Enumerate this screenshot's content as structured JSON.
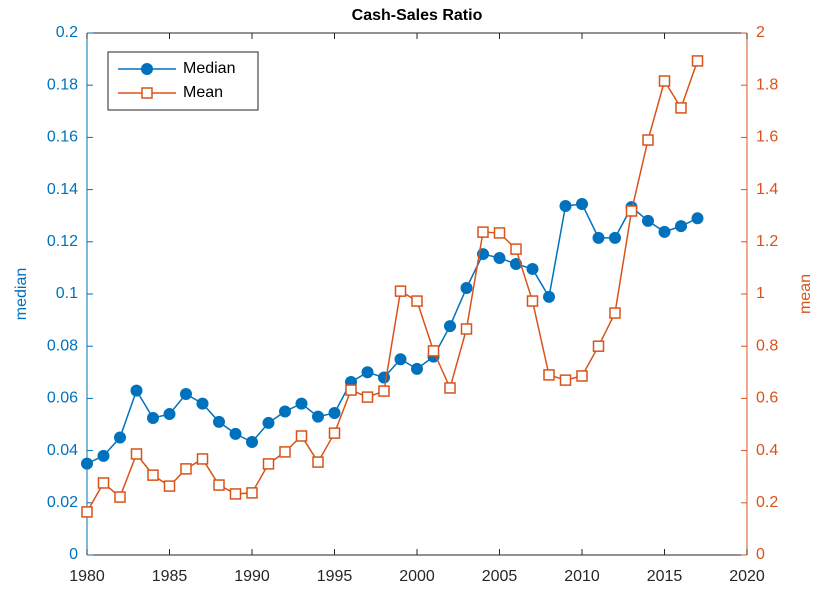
{
  "chart_data": {
    "type": "line",
    "title": "Cash-Sales Ratio",
    "y_label": "median",
    "y2_label": "mean",
    "x": [
      1980,
      1981,
      1982,
      1983,
      1984,
      1985,
      1986,
      1987,
      1988,
      1989,
      1990,
      1991,
      1992,
      1993,
      1994,
      1995,
      1996,
      1997,
      1998,
      1999,
      2000,
      2001,
      2002,
      2003,
      2004,
      2005,
      2006,
      2007,
      2008,
      2009,
      2010,
      2011,
      2012,
      2013,
      2014,
      2015,
      2016,
      2017
    ],
    "series": [
      {
        "name": "Median",
        "color": "#0072BD",
        "marker": "circle",
        "axis": "y",
        "values": [
          0.035,
          0.038,
          0.045,
          0.063,
          0.0525,
          0.054,
          0.0617,
          0.058,
          0.051,
          0.0464,
          0.0433,
          0.0506,
          0.055,
          0.058,
          0.053,
          0.0544,
          0.0663,
          0.07,
          0.068,
          0.075,
          0.0713,
          0.076,
          0.0877,
          0.1023,
          0.1153,
          0.1138,
          0.1115,
          0.1096,
          0.0989,
          0.1337,
          0.1345,
          0.1215,
          0.1215,
          0.1333,
          0.128,
          0.1238,
          0.126,
          0.129
        ]
      },
      {
        "name": "Mean",
        "color": "#D95319",
        "marker": "square",
        "axis": "y2",
        "values": [
          0.165,
          0.276,
          0.222,
          0.387,
          0.306,
          0.264,
          0.33,
          0.368,
          0.268,
          0.234,
          0.238,
          0.349,
          0.395,
          0.456,
          0.356,
          0.467,
          0.632,
          0.605,
          0.628,
          1.011,
          0.973,
          0.782,
          0.64,
          0.866,
          1.237,
          1.234,
          1.172,
          0.973,
          0.69,
          0.67,
          0.686,
          0.8,
          0.927,
          1.318,
          1.59,
          1.816,
          1.713,
          1.893
        ]
      }
    ],
    "xlim": [
      1980,
      2020
    ],
    "xticks": [
      1980,
      1985,
      1990,
      1995,
      2000,
      2005,
      2010,
      2015,
      2020
    ],
    "ylim": [
      0,
      0.2
    ],
    "yticks": [
      0,
      0.02,
      0.04,
      0.06,
      0.08,
      0.1,
      0.12,
      0.14,
      0.16,
      0.18,
      0.2
    ],
    "y2lim": [
      0,
      2
    ],
    "y2ticks": [
      0,
      0.2,
      0.4,
      0.6,
      0.8,
      1,
      1.2,
      1.4,
      1.6,
      1.8,
      2
    ],
    "grid": false,
    "legend": "upper left"
  }
}
